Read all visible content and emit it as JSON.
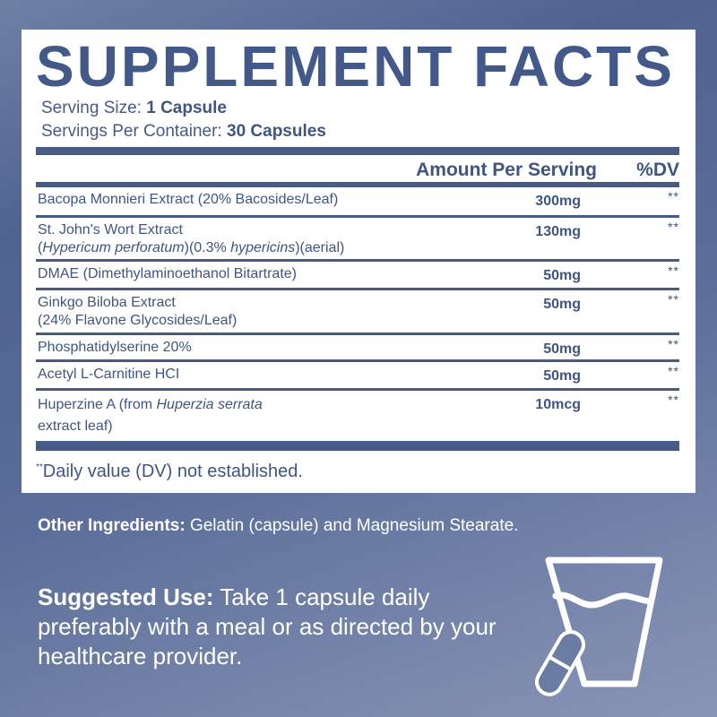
{
  "title": "SUPPLEMENT FACTS",
  "serving_size": {
    "label": "Serving Size:",
    "value": "1 Capsule"
  },
  "servings_per_container": {
    "label": "Servings Per Container:",
    "value": "30 Capsules"
  },
  "header": {
    "amount": "Amount Per Serving",
    "dv": "%DV"
  },
  "rows": [
    {
      "name": "Bacopa Monnieri Extract (20% Bacosides/Leaf)",
      "amount": "300mg",
      "dv": "**"
    },
    {
      "name_line1": "St. John's Wort Extract",
      "name_line2_a": "(",
      "name_line2_i1": "Hypericum perforatum",
      "name_line2_b": ")(0.3% ",
      "name_line2_i2": "hypericins",
      "name_line2_c": ")(aerial)",
      "amount": "130mg",
      "dv": "**"
    },
    {
      "name": "DMAE (Dimethylaminoethanol Bitartrate)",
      "amount": "50mg",
      "dv": "**"
    },
    {
      "name_line1": "Ginkgo Biloba Extract",
      "name_line2": "(24% Flavone Glycosides/Leaf)",
      "amount": "50mg",
      "dv": "**"
    },
    {
      "name": "Phosphatidylserine 20%",
      "amount": "50mg",
      "dv": "**"
    },
    {
      "name": "Acetyl L-Carnitine HCI",
      "amount": "50mg",
      "dv": "**"
    },
    {
      "name_line1_a": "Huperzine A (from ",
      "name_line1_i": "Huperzia serrata",
      "name_line2": "extract leaf)",
      "amount": "10mcg",
      "dv": "**"
    }
  ],
  "footnote": {
    "mark": "**",
    "text": "Daily value (DV) not established."
  },
  "other_ingredients": {
    "label": "Other Ingredients:",
    "text": " Gelatin (capsule) and Magnesium Stearate."
  },
  "suggested_use": {
    "label": "Suggested Use:",
    "text": " Take 1 capsule daily preferably with a meal or as directed by your healthcare provider."
  },
  "icons": [
    "glass-of-water-icon",
    "capsule-icon"
  ],
  "colors": {
    "accent": "#43598a",
    "background": "#5b6e99"
  }
}
